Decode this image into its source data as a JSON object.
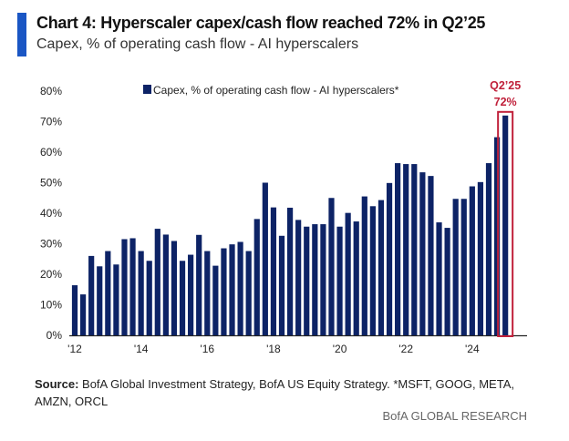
{
  "header": {
    "title": "Chart 4: Hyperscaler capex/cash flow reached 72% in Q2’25",
    "subtitle": "Capex, % of operating cash flow - AI hyperscalers",
    "accent_color": "#1a56c4"
  },
  "chart_data": {
    "type": "bar",
    "title": "",
    "xlabel": "",
    "ylabel": "",
    "ylim": [
      0,
      80
    ],
    "y_ticks": [
      "0%",
      "10%",
      "20%",
      "30%",
      "40%",
      "50%",
      "60%",
      "70%",
      "80%"
    ],
    "x_ticks": [
      {
        "index": 0,
        "label": "'12"
      },
      {
        "index": 8,
        "label": "'14"
      },
      {
        "index": 16,
        "label": "'16"
      },
      {
        "index": 24,
        "label": "'18"
      },
      {
        "index": 32,
        "label": "'20"
      },
      {
        "index": 40,
        "label": "'22"
      },
      {
        "index": 48,
        "label": "'24"
      }
    ],
    "grid": false,
    "legend_position": "top",
    "series": [
      {
        "name": "Capex, % of operating cash flow - AI hyperscalers*",
        "color": "#0d2366",
        "values": [
          16.4,
          13.4,
          26,
          22.6,
          27.6,
          23.2,
          31.5,
          31.8,
          27.6,
          24.4,
          34.9,
          33.0,
          30.9,
          24.4,
          26.4,
          32.9,
          27.6,
          22.8,
          28.5,
          29.8,
          30.6,
          27.6,
          38.1,
          50.0,
          41.9,
          32.6,
          41.8,
          37.8,
          35.6,
          36.4,
          36.4,
          45.0,
          35.6,
          40.1,
          37.3,
          45.5,
          42.3,
          44.3,
          49.9,
          56.4,
          56.1,
          56.1,
          53.4,
          52.2,
          37.0,
          35.2,
          44.7,
          44.7,
          48.8,
          50.2,
          56.4,
          64.9,
          72
        ]
      }
    ],
    "annotation": {
      "label": "Q2’25",
      "value_label": "72%",
      "color": "#c0203a"
    }
  },
  "footer": {
    "source_label": "Source:",
    "source_text": " BofA Global Investment Strategy, BofA US Equity Strategy. *MSFT, GOOG, META, AMZN, ORCL",
    "brand": "BofA GLOBAL RESEARCH"
  }
}
